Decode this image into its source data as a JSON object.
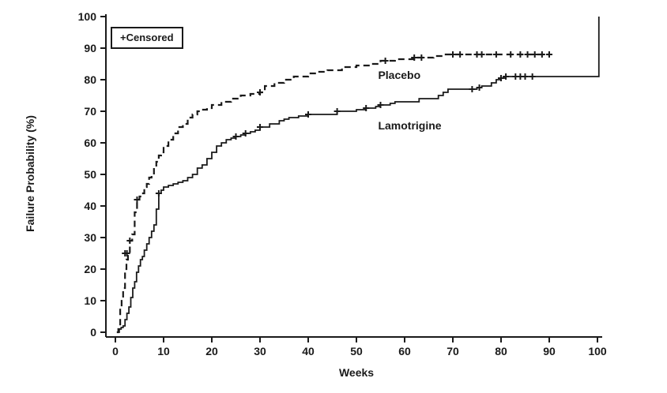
{
  "figure": {
    "background": "#ffffff",
    "axis_color": "#1a1a1a",
    "line_color": "#1a1a1a"
  },
  "chart_data": {
    "type": "line",
    "subtype": "kaplan-meier-failure-step",
    "title": "",
    "xlabel": "Weeks",
    "ylabel": "Failure Probability (%)",
    "xlim": [
      0,
      100
    ],
    "ylim": [
      0,
      100
    ],
    "x_ticks": [
      0,
      10,
      20,
      30,
      40,
      50,
      60,
      70,
      80,
      90,
      100
    ],
    "y_ticks": [
      0,
      10,
      20,
      30,
      40,
      50,
      60,
      70,
      80,
      90,
      100
    ],
    "grid": false,
    "legend": {
      "position": "top-left",
      "censored_label": "+Censored"
    },
    "series": [
      {
        "name": "Placebo",
        "line_style": "dashed",
        "color": "#1a1a1a",
        "label_pos": [
          54.5,
          81.5
        ],
        "points": [
          [
            0.3,
            0
          ],
          [
            0.6,
            1
          ],
          [
            1,
            8
          ],
          [
            1.3,
            11
          ],
          [
            1.6,
            14
          ],
          [
            2,
            20
          ],
          [
            2.3,
            23
          ],
          [
            2.6,
            25
          ],
          [
            3,
            29
          ],
          [
            3.5,
            31
          ],
          [
            4,
            38
          ],
          [
            4.5,
            42
          ],
          [
            5,
            43
          ],
          [
            5.5,
            44
          ],
          [
            6,
            46
          ],
          [
            6.5,
            47
          ],
          [
            7,
            49
          ],
          [
            7.5,
            50
          ],
          [
            8,
            52
          ],
          [
            8.5,
            54
          ],
          [
            9,
            56
          ],
          [
            9.5,
            57
          ],
          [
            10,
            59
          ],
          [
            11,
            61
          ],
          [
            12,
            63
          ],
          [
            13,
            65
          ],
          [
            14,
            66
          ],
          [
            15,
            68
          ],
          [
            16,
            69
          ],
          [
            17,
            70
          ],
          [
            18,
            70.5
          ],
          [
            19,
            71
          ],
          [
            20,
            72
          ],
          [
            22,
            73
          ],
          [
            24,
            74
          ],
          [
            26,
            75
          ],
          [
            28,
            75.5
          ],
          [
            30,
            76
          ],
          [
            31,
            78
          ],
          [
            33,
            79
          ],
          [
            35,
            80
          ],
          [
            37,
            81
          ],
          [
            40,
            82
          ],
          [
            42,
            82.5
          ],
          [
            44,
            83
          ],
          [
            47,
            84
          ],
          [
            50,
            84.5
          ],
          [
            53,
            85
          ],
          [
            55,
            86
          ],
          [
            58,
            86.5
          ],
          [
            62,
            87
          ],
          [
            66,
            87.5
          ],
          [
            68,
            88
          ],
          [
            90,
            88
          ]
        ],
        "censor_marks": [
          [
            2,
            25
          ],
          [
            2.4,
            25
          ],
          [
            3,
            29
          ],
          [
            4.5,
            42
          ],
          [
            30,
            76
          ],
          [
            56,
            86
          ],
          [
            62,
            87
          ],
          [
            63.5,
            87
          ],
          [
            70,
            88
          ],
          [
            71.5,
            88
          ],
          [
            75,
            88
          ],
          [
            76,
            88
          ],
          [
            79,
            88
          ],
          [
            82,
            88
          ],
          [
            84,
            88
          ],
          [
            85.5,
            88
          ],
          [
            87,
            88
          ],
          [
            88.5,
            88
          ],
          [
            90,
            88
          ]
        ]
      },
      {
        "name": "Lamotrigine",
        "line_style": "solid",
        "color": "#1a1a1a",
        "label_pos": [
          54.5,
          65.5
        ],
        "points": [
          [
            0.4,
            0
          ],
          [
            0.8,
            1
          ],
          [
            1.2,
            1.5
          ],
          [
            1.6,
            2
          ],
          [
            2,
            4
          ],
          [
            2.4,
            6
          ],
          [
            2.8,
            8
          ],
          [
            3.2,
            11
          ],
          [
            3.6,
            14
          ],
          [
            4,
            16
          ],
          [
            4.4,
            19
          ],
          [
            4.8,
            21
          ],
          [
            5.2,
            23
          ],
          [
            5.6,
            24
          ],
          [
            6,
            26
          ],
          [
            6.5,
            28
          ],
          [
            7,
            30
          ],
          [
            7.5,
            32
          ],
          [
            8,
            34
          ],
          [
            8.5,
            39
          ],
          [
            9,
            44
          ],
          [
            9.5,
            45
          ],
          [
            10,
            46
          ],
          [
            11,
            46.5
          ],
          [
            12,
            47
          ],
          [
            13,
            47.5
          ],
          [
            14,
            48
          ],
          [
            15,
            49
          ],
          [
            16,
            50
          ],
          [
            17,
            52
          ],
          [
            18,
            53
          ],
          [
            19,
            55
          ],
          [
            20,
            57
          ],
          [
            21,
            59
          ],
          [
            22,
            60
          ],
          [
            23,
            61
          ],
          [
            24,
            61.5
          ],
          [
            25,
            62
          ],
          [
            26,
            62.5
          ],
          [
            27,
            63
          ],
          [
            28,
            63.5
          ],
          [
            29,
            64
          ],
          [
            30,
            65
          ],
          [
            32,
            66
          ],
          [
            34,
            67
          ],
          [
            35,
            67.5
          ],
          [
            36,
            68
          ],
          [
            38,
            68.5
          ],
          [
            40,
            69
          ],
          [
            44,
            69
          ],
          [
            46,
            70
          ],
          [
            50,
            70.5
          ],
          [
            52,
            71
          ],
          [
            54,
            71.5
          ],
          [
            55,
            72
          ],
          [
            57,
            72.5
          ],
          [
            58,
            73
          ],
          [
            60,
            73
          ],
          [
            63,
            74
          ],
          [
            65,
            74
          ],
          [
            67,
            75
          ],
          [
            68,
            76
          ],
          [
            69,
            77
          ],
          [
            74,
            77
          ],
          [
            75,
            77.5
          ],
          [
            76,
            78
          ],
          [
            78,
            79
          ],
          [
            79,
            80
          ],
          [
            80,
            80.5
          ],
          [
            81,
            81
          ],
          [
            100.3,
            81
          ],
          [
            100.3,
            100
          ]
        ],
        "censor_marks": [
          [
            9,
            44
          ],
          [
            25,
            62
          ],
          [
            27,
            63
          ],
          [
            30,
            65
          ],
          [
            40,
            69
          ],
          [
            46,
            70
          ],
          [
            52,
            71
          ],
          [
            55,
            72
          ],
          [
            74,
            77
          ],
          [
            75.5,
            77.5
          ],
          [
            80,
            80.5
          ],
          [
            81,
            81
          ],
          [
            83,
            81
          ],
          [
            84,
            81
          ],
          [
            85,
            81
          ],
          [
            86.5,
            81
          ]
        ]
      }
    ]
  }
}
